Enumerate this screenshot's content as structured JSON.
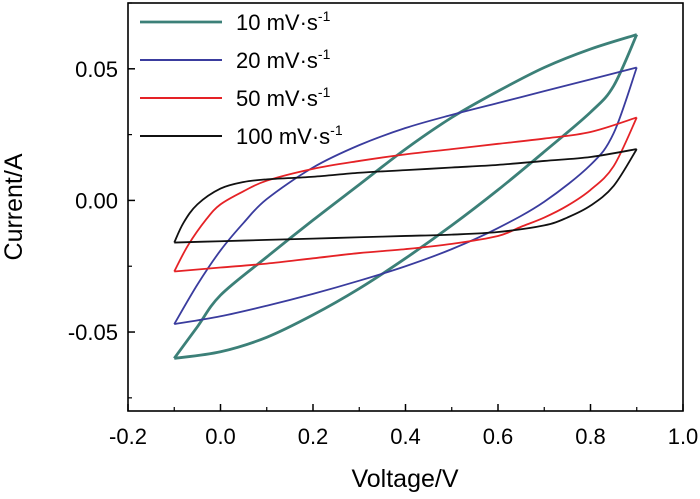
{
  "chart_data": {
    "type": "line",
    "xlabel": "Voltage/V",
    "ylabel": "Current/A",
    "xlim": [
      -0.2,
      1.0
    ],
    "ylim": [
      -0.08,
      0.075
    ],
    "x_ticks": [
      -0.2,
      0.0,
      0.2,
      0.4,
      0.6,
      0.8,
      1.0
    ],
    "x_tick_labels": [
      "-0.2",
      "0.0",
      "0.2",
      "0.4",
      "0.6",
      "0.8",
      "1.0"
    ],
    "y_ticks": [
      -0.05,
      0.0,
      0.05
    ],
    "y_tick_labels": [
      "-0.05",
      "0.00",
      "0.05"
    ],
    "legend_position": "top-left",
    "series": [
      {
        "name": "10 mV·s",
        "superscript": "-1",
        "color": "#3c8078",
        "upper": [
          [
            -0.1,
            -0.06
          ],
          [
            -0.05,
            -0.048
          ],
          [
            0.0,
            -0.036
          ],
          [
            0.1,
            -0.0215
          ],
          [
            0.2,
            -0.0075
          ],
          [
            0.3,
            0.006
          ],
          [
            0.4,
            0.0195
          ],
          [
            0.5,
            0.0315
          ],
          [
            0.6,
            0.0415
          ],
          [
            0.7,
            0.0505
          ],
          [
            0.8,
            0.0575
          ],
          [
            0.9,
            0.063
          ]
        ],
        "lower": [
          [
            -0.1,
            -0.06
          ],
          [
            0.0,
            -0.0575
          ],
          [
            0.1,
            -0.052
          ],
          [
            0.2,
            -0.0435
          ],
          [
            0.3,
            -0.0335
          ],
          [
            0.4,
            -0.022
          ],
          [
            0.5,
            -0.0095
          ],
          [
            0.6,
            0.004
          ],
          [
            0.7,
            0.0185
          ],
          [
            0.8,
            0.0335
          ],
          [
            0.85,
            0.0435
          ],
          [
            0.9,
            0.063
          ]
        ]
      },
      {
        "name": "20 mV·s",
        "superscript": "-1",
        "color": "#3a3c9e",
        "upper": [
          [
            -0.1,
            -0.047
          ],
          [
            -0.05,
            -0.032
          ],
          [
            0.0,
            -0.019
          ],
          [
            0.05,
            -0.0085
          ],
          [
            0.1,
            0.0005
          ],
          [
            0.2,
            0.0125
          ],
          [
            0.3,
            0.021
          ],
          [
            0.4,
            0.0275
          ],
          [
            0.5,
            0.0325
          ],
          [
            0.6,
            0.037
          ],
          [
            0.7,
            0.0415
          ],
          [
            0.8,
            0.046
          ],
          [
            0.9,
            0.0505
          ]
        ],
        "lower": [
          [
            -0.1,
            -0.047
          ],
          [
            0.0,
            -0.044
          ],
          [
            0.1,
            -0.04
          ],
          [
            0.2,
            -0.0355
          ],
          [
            0.3,
            -0.0305
          ],
          [
            0.4,
            -0.025
          ],
          [
            0.5,
            -0.0185
          ],
          [
            0.6,
            -0.0105
          ],
          [
            0.7,
            -0.0005
          ],
          [
            0.8,
            0.0135
          ],
          [
            0.85,
            0.0255
          ],
          [
            0.9,
            0.0505
          ]
        ]
      },
      {
        "name": "50 mV·s",
        "superscript": "-1",
        "color": "#e52226",
        "upper": [
          [
            -0.1,
            -0.027
          ],
          [
            -0.07,
            -0.017
          ],
          [
            -0.03,
            -0.007
          ],
          [
            0.0,
            -0.0015
          ],
          [
            0.05,
            0.0035
          ],
          [
            0.1,
            0.0075
          ],
          [
            0.2,
            0.012
          ],
          [
            0.3,
            0.015
          ],
          [
            0.4,
            0.0175
          ],
          [
            0.5,
            0.0195
          ],
          [
            0.6,
            0.0215
          ],
          [
            0.7,
            0.0235
          ],
          [
            0.8,
            0.026
          ],
          [
            0.9,
            0.0315
          ]
        ],
        "lower": [
          [
            -0.1,
            -0.027
          ],
          [
            0.0,
            -0.0255
          ],
          [
            0.1,
            -0.024
          ],
          [
            0.2,
            -0.022
          ],
          [
            0.3,
            -0.02
          ],
          [
            0.4,
            -0.0185
          ],
          [
            0.5,
            -0.0165
          ],
          [
            0.6,
            -0.0135
          ],
          [
            0.65,
            -0.01
          ],
          [
            0.7,
            -0.0065
          ],
          [
            0.75,
            -0.002
          ],
          [
            0.8,
            0.004
          ],
          [
            0.85,
            0.013
          ],
          [
            0.9,
            0.0315
          ]
        ]
      },
      {
        "name": "100 mV·s",
        "superscript": "-1",
        "color": "#111111",
        "upper": [
          [
            -0.1,
            -0.016
          ],
          [
            -0.08,
            -0.0085
          ],
          [
            -0.05,
            -0.0015
          ],
          [
            0.0,
            0.0045
          ],
          [
            0.05,
            0.007
          ],
          [
            0.1,
            0.008
          ],
          [
            0.2,
            0.009
          ],
          [
            0.3,
            0.0105
          ],
          [
            0.4,
            0.0115
          ],
          [
            0.5,
            0.0125
          ],
          [
            0.6,
            0.0135
          ],
          [
            0.7,
            0.015
          ],
          [
            0.8,
            0.0165
          ],
          [
            0.9,
            0.0195
          ]
        ],
        "lower": [
          [
            -0.1,
            -0.016
          ],
          [
            0.0,
            -0.0155
          ],
          [
            0.1,
            -0.015
          ],
          [
            0.2,
            -0.0145
          ],
          [
            0.3,
            -0.014
          ],
          [
            0.4,
            -0.0135
          ],
          [
            0.5,
            -0.013
          ],
          [
            0.6,
            -0.012
          ],
          [
            0.7,
            -0.0095
          ],
          [
            0.75,
            -0.0065
          ],
          [
            0.8,
            -0.002
          ],
          [
            0.85,
            0.0055
          ],
          [
            0.9,
            0.0195
          ]
        ]
      }
    ]
  }
}
